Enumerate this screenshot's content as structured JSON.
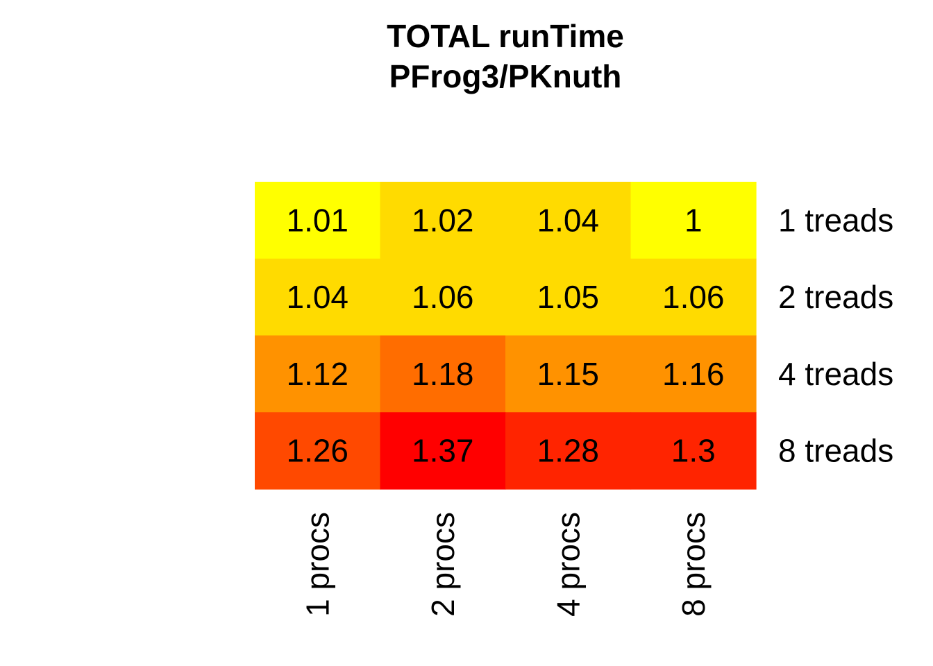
{
  "chart_data": {
    "type": "heatmap",
    "title": [
      "TOTAL  runTime",
      "PFrog3/PKnuth"
    ],
    "columns": [
      "1 procs",
      "2 procs",
      "4 procs",
      "8 procs"
    ],
    "rows": [
      "1 treads",
      "2 treads",
      "4 treads",
      "8 treads"
    ],
    "values": [
      [
        1.01,
        1.02,
        1.04,
        1
      ],
      [
        1.04,
        1.06,
        1.05,
        1.06
      ],
      [
        1.12,
        1.18,
        1.15,
        1.16
      ],
      [
        1.26,
        1.37,
        1.28,
        1.3
      ]
    ],
    "value_labels": [
      [
        "1.01",
        "1.02",
        "1.04",
        "1"
      ],
      [
        "1.04",
        "1.06",
        "1.05",
        "1.06"
      ],
      [
        "1.12",
        "1.18",
        "1.15",
        "1.16"
      ],
      [
        "1.26",
        "1.37",
        "1.28",
        "1.3"
      ]
    ],
    "cell_colors": [
      [
        "#FFFF00",
        "#FFDB00",
        "#FFDB00",
        "#FFFF00"
      ],
      [
        "#FFDB00",
        "#FFDB00",
        "#FFDB00",
        "#FFDB00"
      ],
      [
        "#FF9200",
        "#FF6D00",
        "#FF9200",
        "#FF9200"
      ],
      [
        "#FF4900",
        "#FF0000",
        "#FF2400",
        "#FF2400"
      ]
    ],
    "colormap": "heat",
    "row_labels_position": "right",
    "column_labels_position": "bottom",
    "column_labels_rotation": "vertical",
    "grid": false,
    "legend": "none"
  }
}
